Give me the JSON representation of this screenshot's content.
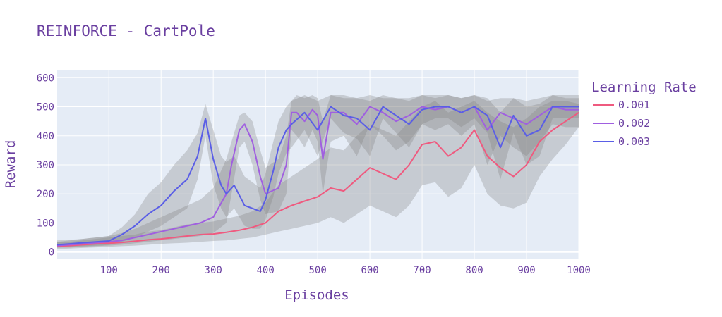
{
  "chart_data": {
    "type": "line",
    "title": "REINFORCE - CartPole",
    "xlabel": "Episodes",
    "ylabel": "Reward",
    "xlim": [
      1,
      1000
    ],
    "ylim": [
      -25,
      625
    ],
    "xticks": [
      100,
      200,
      300,
      400,
      500,
      600,
      700,
      800,
      900,
      1000
    ],
    "yticks": [
      0,
      100,
      200,
      300,
      400,
      500,
      600
    ],
    "grid": true,
    "legend_title": "Learning Rate",
    "legend_position": "right",
    "plot_bg": "#e5ecf6",
    "band_color": "#7f7f7f",
    "series": [
      {
        "name": "0.001",
        "color": "#ef5a7f",
        "x": [
          1,
          25,
          50,
          75,
          100,
          125,
          150,
          175,
          200,
          225,
          250,
          275,
          300,
          325,
          350,
          375,
          400,
          425,
          450,
          475,
          500,
          525,
          550,
          575,
          600,
          625,
          650,
          675,
          700,
          725,
          750,
          775,
          800,
          825,
          850,
          875,
          900,
          925,
          950,
          975,
          1000
        ],
        "values": [
          20,
          22,
          25,
          28,
          30,
          33,
          37,
          42,
          45,
          50,
          55,
          60,
          62,
          68,
          75,
          85,
          100,
          140,
          160,
          175,
          190,
          220,
          210,
          250,
          290,
          270,
          250,
          300,
          370,
          380,
          330,
          360,
          420,
          330,
          290,
          260,
          300,
          380,
          420,
          450,
          480
        ],
        "upper": [
          35,
          35,
          40,
          45,
          50,
          55,
          60,
          70,
          75,
          85,
          95,
          100,
          105,
          115,
          125,
          140,
          170,
          230,
          260,
          290,
          320,
          360,
          350,
          400,
          440,
          420,
          400,
          450,
          500,
          520,
          480,
          500,
          520,
          480,
          450,
          430,
          460,
          500,
          520,
          520,
          510
        ],
        "lower": [
          10,
          12,
          14,
          16,
          18,
          20,
          22,
          25,
          28,
          30,
          32,
          35,
          38,
          40,
          45,
          50,
          60,
          70,
          80,
          90,
          100,
          120,
          100,
          130,
          160,
          140,
          120,
          160,
          230,
          240,
          190,
          220,
          300,
          200,
          160,
          150,
          170,
          260,
          320,
          370,
          430
        ]
      },
      {
        "name": "0.002",
        "color": "#a05fe0",
        "x": [
          1,
          25,
          50,
          75,
          100,
          125,
          150,
          175,
          200,
          225,
          250,
          275,
          300,
          325,
          335,
          350,
          360,
          375,
          390,
          400,
          425,
          440,
          450,
          460,
          475,
          490,
          500,
          510,
          525,
          550,
          575,
          600,
          625,
          650,
          675,
          700,
          725,
          750,
          775,
          800,
          825,
          850,
          875,
          900,
          925,
          950,
          975,
          1000
        ],
        "values": [
          22,
          25,
          28,
          32,
          35,
          40,
          50,
          60,
          70,
          80,
          90,
          100,
          120,
          200,
          300,
          420,
          440,
          380,
          260,
          200,
          220,
          300,
          480,
          480,
          450,
          490,
          470,
          320,
          480,
          480,
          440,
          500,
          480,
          450,
          470,
          500,
          490,
          500,
          480,
          500,
          420,
          480,
          460,
          440,
          470,
          500,
          490,
          490
        ],
        "upper": [
          35,
          40,
          45,
          50,
          55,
          65,
          80,
          100,
          120,
          140,
          160,
          180,
          220,
          320,
          380,
          470,
          480,
          450,
          350,
          290,
          320,
          400,
          520,
          540,
          530,
          540,
          530,
          450,
          540,
          540,
          530,
          540,
          530,
          530,
          530,
          540,
          530,
          540,
          530,
          540,
          520,
          530,
          530,
          520,
          530,
          540,
          530,
          530
        ],
        "lower": [
          15,
          15,
          18,
          20,
          22,
          25,
          30,
          35,
          40,
          45,
          50,
          55,
          65,
          100,
          200,
          360,
          380,
          300,
          180,
          130,
          140,
          200,
          420,
          400,
          360,
          420,
          380,
          200,
          380,
          400,
          330,
          440,
          400,
          350,
          380,
          440,
          420,
          440,
          400,
          440,
          300,
          400,
          360,
          330,
          380,
          440,
          430,
          430
        ]
      },
      {
        "name": "0.003",
        "color": "#5a5ee6",
        "x": [
          1,
          25,
          50,
          75,
          100,
          125,
          150,
          175,
          200,
          225,
          250,
          270,
          285,
          300,
          315,
          325,
          340,
          360,
          375,
          390,
          400,
          415,
          425,
          440,
          450,
          475,
          500,
          525,
          550,
          575,
          600,
          625,
          650,
          675,
          700,
          725,
          750,
          775,
          800,
          825,
          850,
          875,
          900,
          925,
          950,
          975,
          1000
        ],
        "values": [
          25,
          28,
          32,
          35,
          38,
          60,
          90,
          130,
          160,
          210,
          250,
          330,
          460,
          320,
          230,
          200,
          230,
          160,
          150,
          140,
          180,
          280,
          360,
          420,
          440,
          480,
          420,
          500,
          470,
          460,
          420,
          500,
          470,
          440,
          490,
          500,
          500,
          480,
          500,
          470,
          360,
          470,
          400,
          420,
          500,
          500,
          500
        ],
        "upper": [
          40,
          42,
          45,
          50,
          55,
          85,
          130,
          200,
          240,
          300,
          350,
          410,
          510,
          420,
          330,
          310,
          330,
          260,
          240,
          220,
          270,
          380,
          450,
          500,
          520,
          540,
          520,
          540,
          530,
          530,
          520,
          540,
          530,
          520,
          540,
          540,
          540,
          530,
          540,
          530,
          480,
          530,
          500,
          510,
          540,
          540,
          540
        ],
        "lower": [
          15,
          18,
          20,
          22,
          24,
          35,
          50,
          70,
          90,
          120,
          150,
          250,
          400,
          230,
          150,
          120,
          150,
          90,
          80,
          80,
          110,
          190,
          270,
          340,
          360,
          420,
          330,
          460,
          410,
          390,
          330,
          460,
          410,
          360,
          440,
          460,
          460,
          430,
          460,
          410,
          250,
          410,
          300,
          330,
          460,
          460,
          460
        ]
      }
    ]
  }
}
